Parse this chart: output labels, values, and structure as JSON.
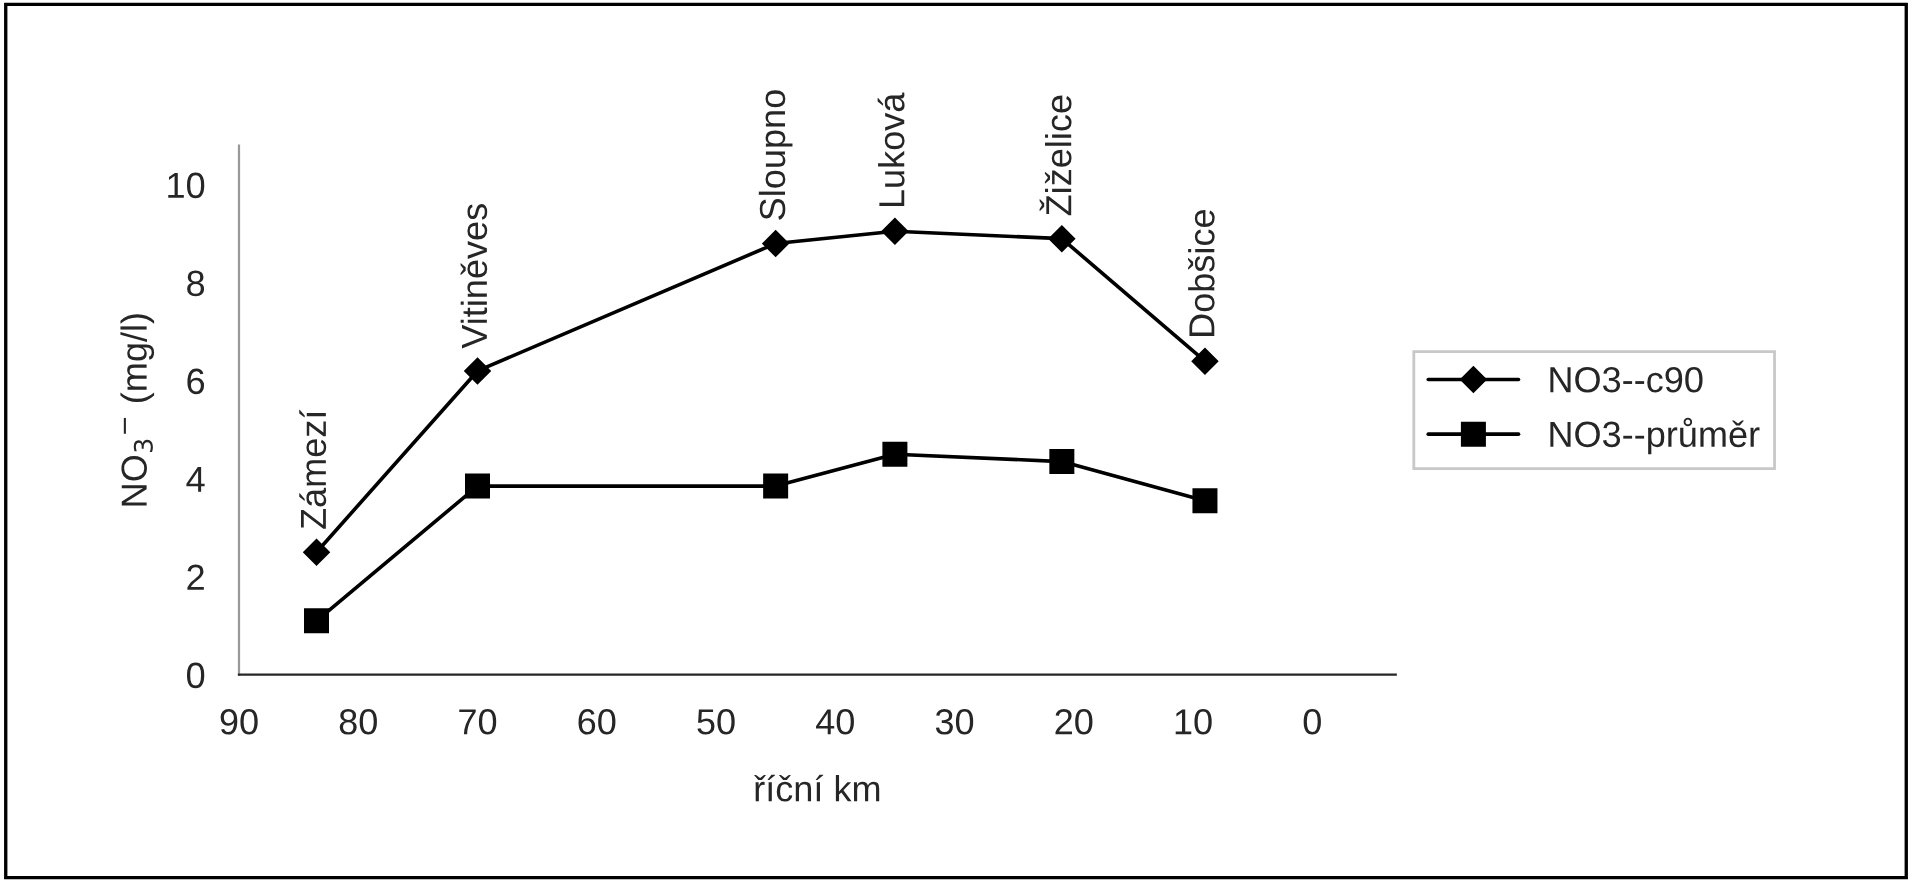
{
  "chart_data": {
    "type": "line",
    "xlabel": "říční km",
    "ylabel": "NO$_{3}$$^{−}$ (mg/l)",
    "x": [
      83.5,
      70,
      45,
      35,
      21,
      9
    ],
    "series": [
      {
        "name": "NO3--c90",
        "color": "#000000",
        "marker": "diamond",
        "values": [
          2.5,
          6.2,
          8.8,
          9.05,
          8.9,
          6.4
        ]
      },
      {
        "name": "NO3--průměr",
        "color": "#000000",
        "marker": "square",
        "values": [
          1.1,
          3.85,
          3.85,
          4.5,
          4.35,
          3.55
        ]
      }
    ],
    "annotations": [
      {
        "text": "Zámezí",
        "x": 83.5,
        "y": 2.5
      },
      {
        "text": "Vitiněves",
        "x": 70,
        "y": 6.2
      },
      {
        "text": "Sloupno",
        "x": 45,
        "y": 8.8
      },
      {
        "text": "Luková",
        "x": 35,
        "y": 9.05
      },
      {
        "text": "Žiželice",
        "x": 21,
        "y": 8.9
      },
      {
        "text": "Dobšice",
        "x": 9,
        "y": 6.4
      }
    ],
    "xlim": [
      90,
      -7
    ],
    "xticks": [
      90,
      80,
      70,
      60,
      50,
      40,
      30,
      20,
      10,
      0
    ],
    "ylim": [
      0,
      10.8
    ],
    "yticks": [
      0,
      2,
      4,
      6,
      8,
      10
    ],
    "grid": false,
    "legend": "right",
    "line_style": "solid"
  }
}
